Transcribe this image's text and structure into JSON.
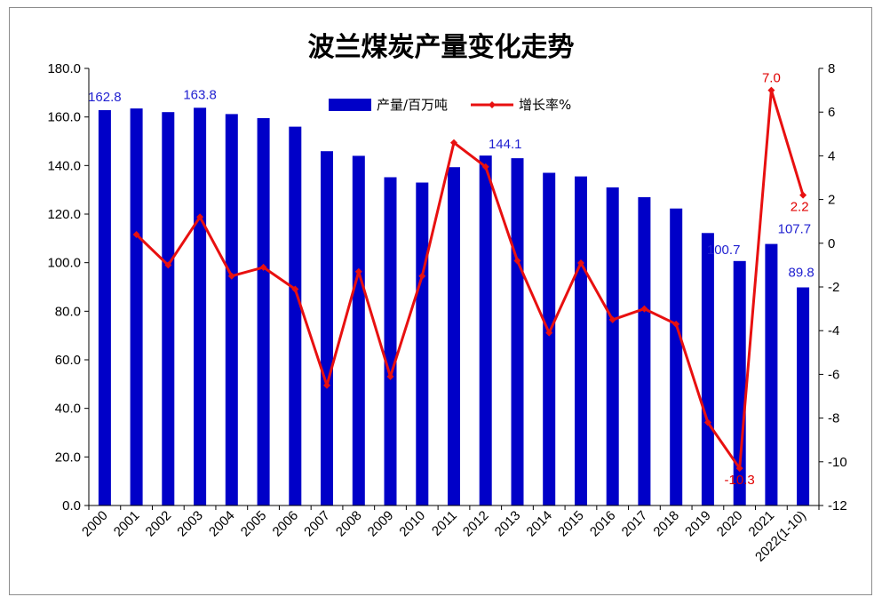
{
  "chart_data": {
    "type": "bar+line",
    "title": "波兰煤炭产量变化走势",
    "categories": [
      "2000",
      "2001",
      "2002",
      "2003",
      "2004",
      "2005",
      "2006",
      "2007",
      "2008",
      "2009",
      "2010",
      "2011",
      "2012",
      "2013",
      "2014",
      "2015",
      "2016",
      "2017",
      "2018",
      "2019",
      "2020",
      "2021",
      "2022(1-10)"
    ],
    "series": [
      {
        "name": "产量/百万吨",
        "kind": "bar",
        "axis": "left",
        "color": "#0000c8",
        "values": [
          162.8,
          163.5,
          162.0,
          163.8,
          161.2,
          159.5,
          156.0,
          145.9,
          144.0,
          135.2,
          133.0,
          139.3,
          144.1,
          143.0,
          137.0,
          135.5,
          131.0,
          127.0,
          122.3,
          112.2,
          100.7,
          107.7,
          89.8
        ]
      },
      {
        "name": "增长率%",
        "kind": "line",
        "axis": "right",
        "color": "#e81010",
        "values": [
          null,
          0.4,
          -1.0,
          1.2,
          -1.5,
          -1.1,
          -2.1,
          -6.5,
          -1.3,
          -6.1,
          -1.5,
          4.6,
          3.5,
          -0.8,
          -4.1,
          -0.9,
          -3.5,
          -3.0,
          -3.7,
          -8.2,
          -10.3,
          7.0,
          2.2
        ]
      }
    ],
    "bar_labels": [
      {
        "index": 0,
        "text": "162.8"
      },
      {
        "index": 3,
        "text": "163.8"
      },
      {
        "index": 12,
        "text": "144.1"
      },
      {
        "index": 20,
        "text": "100.7"
      },
      {
        "index": 21,
        "text": "107.7"
      },
      {
        "index": 22,
        "text": "89.8"
      }
    ],
    "rate_labels": [
      {
        "index": 20,
        "text": "-10.3"
      },
      {
        "index": 21,
        "text": "7.0"
      },
      {
        "index": 22,
        "text": "2.2"
      }
    ],
    "y_left": {
      "min": 0,
      "max": 180,
      "step": 20,
      "ticks": [
        "0.0",
        "20.0",
        "40.0",
        "60.0",
        "80.0",
        "100.0",
        "120.0",
        "140.0",
        "160.0",
        "180.0"
      ]
    },
    "y_right": {
      "min": -12,
      "max": 8,
      "step": 2,
      "ticks": [
        "-12",
        "-10",
        "-8",
        "-6",
        "-4",
        "-2",
        "0",
        "2",
        "4",
        "6",
        "8"
      ]
    },
    "grid": false,
    "legend_position": "top-center"
  }
}
